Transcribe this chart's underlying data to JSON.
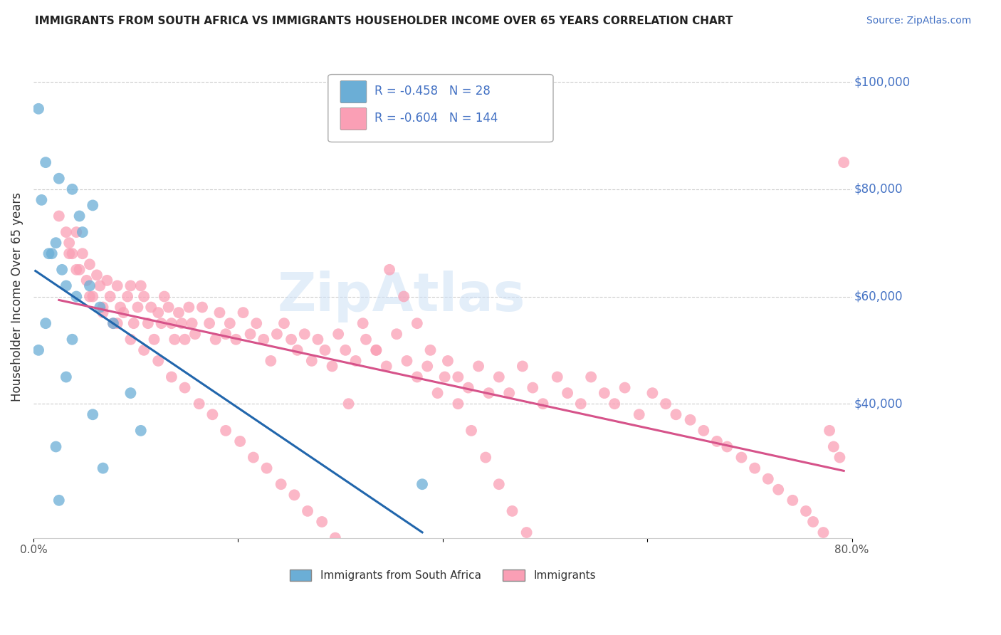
{
  "title": "IMMIGRANTS FROM SOUTH AFRICA VS IMMIGRANTS HOUSEHOLDER INCOME OVER 65 YEARS CORRELATION CHART",
  "source": "Source: ZipAtlas.com",
  "ylabel": "Householder Income Over 65 years",
  "legend_label1": "Immigrants from South Africa",
  "legend_label2": "Immigrants",
  "r1": -0.458,
  "n1": 28,
  "r2": -0.604,
  "n2": 144,
  "xlim": [
    0.0,
    0.8
  ],
  "ylim": [
    15000,
    105000
  ],
  "yticks": [
    40000,
    60000,
    80000,
    100000
  ],
  "ytick_labels": [
    "$40,000",
    "$60,000",
    "$80,000",
    "$100,000"
  ],
  "xticks": [
    0.0,
    0.2,
    0.4,
    0.6,
    0.8
  ],
  "xtick_labels": [
    "0.0%",
    "",
    "",
    "",
    "80.0%"
  ],
  "color1": "#6baed6",
  "color2": "#fa9fb5",
  "background": "#ffffff",
  "watermark": "ZipAtlas",
  "blue_scatter_x": [
    0.005,
    0.025,
    0.012,
    0.008,
    0.038,
    0.045,
    0.048,
    0.058,
    0.015,
    0.022,
    0.028,
    0.032,
    0.018,
    0.042,
    0.012,
    0.005,
    0.055,
    0.038,
    0.065,
    0.078,
    0.032,
    0.095,
    0.058,
    0.105,
    0.022,
    0.068,
    0.025,
    0.38
  ],
  "blue_scatter_y": [
    95000,
    82000,
    85000,
    78000,
    80000,
    75000,
    72000,
    77000,
    68000,
    70000,
    65000,
    62000,
    68000,
    60000,
    55000,
    50000,
    62000,
    52000,
    58000,
    55000,
    45000,
    42000,
    38000,
    35000,
    32000,
    28000,
    22000,
    25000
  ],
  "pink_scatter_x": [
    0.025,
    0.032,
    0.035,
    0.038,
    0.042,
    0.045,
    0.048,
    0.052,
    0.055,
    0.058,
    0.062,
    0.065,
    0.068,
    0.072,
    0.075,
    0.078,
    0.082,
    0.085,
    0.088,
    0.092,
    0.095,
    0.098,
    0.102,
    0.105,
    0.108,
    0.112,
    0.115,
    0.118,
    0.122,
    0.125,
    0.128,
    0.132,
    0.135,
    0.138,
    0.142,
    0.145,
    0.148,
    0.152,
    0.155,
    0.158,
    0.165,
    0.172,
    0.178,
    0.182,
    0.188,
    0.192,
    0.198,
    0.205,
    0.212,
    0.218,
    0.225,
    0.232,
    0.238,
    0.245,
    0.252,
    0.258,
    0.265,
    0.272,
    0.278,
    0.285,
    0.292,
    0.298,
    0.305,
    0.315,
    0.325,
    0.335,
    0.345,
    0.355,
    0.365,
    0.375,
    0.385,
    0.395,
    0.405,
    0.415,
    0.425,
    0.435,
    0.445,
    0.455,
    0.465,
    0.478,
    0.488,
    0.498,
    0.512,
    0.522,
    0.535,
    0.545,
    0.558,
    0.568,
    0.578,
    0.592,
    0.605,
    0.618,
    0.628,
    0.642,
    0.655,
    0.668,
    0.678,
    0.692,
    0.705,
    0.718,
    0.728,
    0.742,
    0.755,
    0.762,
    0.772,
    0.778,
    0.782,
    0.788,
    0.792,
    0.035,
    0.042,
    0.055,
    0.068,
    0.082,
    0.095,
    0.108,
    0.122,
    0.135,
    0.148,
    0.162,
    0.175,
    0.188,
    0.202,
    0.215,
    0.228,
    0.242,
    0.255,
    0.268,
    0.282,
    0.295,
    0.308,
    0.322,
    0.335,
    0.348,
    0.362,
    0.375,
    0.388,
    0.402,
    0.415,
    0.428,
    0.442,
    0.455,
    0.468,
    0.482
  ],
  "pink_scatter_y": [
    75000,
    72000,
    70000,
    68000,
    72000,
    65000,
    68000,
    63000,
    66000,
    60000,
    64000,
    62000,
    58000,
    63000,
    60000,
    55000,
    62000,
    58000,
    57000,
    60000,
    62000,
    55000,
    58000,
    62000,
    60000,
    55000,
    58000,
    52000,
    57000,
    55000,
    60000,
    58000,
    55000,
    52000,
    57000,
    55000,
    52000,
    58000,
    55000,
    53000,
    58000,
    55000,
    52000,
    57000,
    53000,
    55000,
    52000,
    57000,
    53000,
    55000,
    52000,
    48000,
    53000,
    55000,
    52000,
    50000,
    53000,
    48000,
    52000,
    50000,
    47000,
    53000,
    50000,
    48000,
    52000,
    50000,
    47000,
    53000,
    48000,
    45000,
    47000,
    42000,
    48000,
    45000,
    43000,
    47000,
    42000,
    45000,
    42000,
    47000,
    43000,
    40000,
    45000,
    42000,
    40000,
    45000,
    42000,
    40000,
    43000,
    38000,
    42000,
    40000,
    38000,
    37000,
    35000,
    33000,
    32000,
    30000,
    28000,
    26000,
    24000,
    22000,
    20000,
    18000,
    16000,
    35000,
    32000,
    30000,
    85000,
    68000,
    65000,
    60000,
    57000,
    55000,
    52000,
    50000,
    48000,
    45000,
    43000,
    40000,
    38000,
    35000,
    33000,
    30000,
    28000,
    25000,
    23000,
    20000,
    18000,
    15000,
    40000,
    55000,
    50000,
    65000,
    60000,
    55000,
    50000,
    45000,
    40000,
    35000,
    30000,
    25000,
    20000,
    16000
  ]
}
